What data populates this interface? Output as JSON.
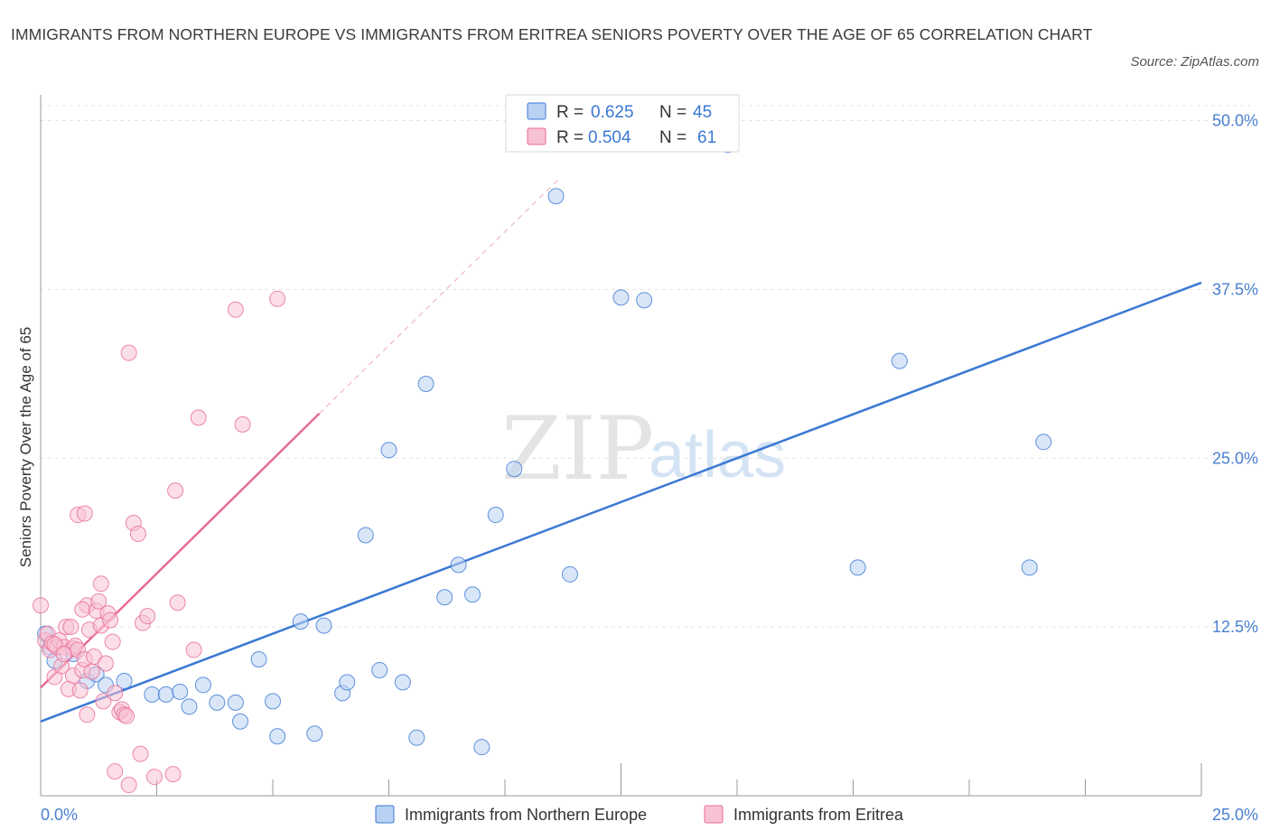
{
  "title": "IMMIGRANTS FROM NORTHERN EUROPE VS IMMIGRANTS FROM ERITREA SENIORS POVERTY OVER THE AGE OF 65 CORRELATION CHART",
  "source": "Source: ZipAtlas.com",
  "watermark": {
    "zip": "ZIP",
    "atlas": "atlas"
  },
  "colors": {
    "blue": "#3b78d4",
    "blue_fill": "#b9d2f3",
    "pink": "#e86b96",
    "pink_fill": "#f7c2d3",
    "axis_label": "#4a7fd0"
  },
  "legend": {
    "rows": [
      {
        "r_label": "R =",
        "r_value": "0.625",
        "n_label": "N =",
        "n_value": "45"
      },
      {
        "r_label": "R =",
        "r_value": "0.504",
        "n_label": "N =",
        "n_value": "61"
      }
    ]
  },
  "chart_data": {
    "type": "scatter",
    "title": "IMMIGRANTS FROM NORTHERN EUROPE VS IMMIGRANTS FROM ERITREA SENIORS POVERTY OVER THE AGE OF 65 CORRELATION CHART",
    "xlabel": "",
    "ylabel": "Seniors Poverty Over the Age of 65",
    "xlim": [
      0,
      25
    ],
    "ylim": [
      0,
      50
    ],
    "x_tick_labels": [
      "0.0%",
      "25.0%"
    ],
    "y_ticks": [
      12.5,
      25.0,
      37.5,
      50.0
    ],
    "y_tick_labels": [
      "12.5%",
      "25.0%",
      "37.5%",
      "50.0%"
    ],
    "grid": true,
    "legend_position": "bottom",
    "series": [
      {
        "name": "Immigrants from Northern Europe",
        "color": "#3b78d4",
        "points": [
          [
            0.2,
            11.0
          ],
          [
            0.3,
            10.0
          ],
          [
            0.7,
            10.5
          ],
          [
            1.0,
            8.5
          ],
          [
            1.2,
            9.0
          ],
          [
            1.4,
            8.2
          ],
          [
            1.8,
            8.5
          ],
          [
            2.4,
            7.5
          ],
          [
            2.7,
            7.5
          ],
          [
            3.0,
            7.7
          ],
          [
            3.2,
            6.6
          ],
          [
            3.5,
            8.2
          ],
          [
            3.8,
            6.9
          ],
          [
            4.2,
            6.9
          ],
          [
            4.3,
            5.5
          ],
          [
            4.7,
            10.1
          ],
          [
            5.0,
            7.0
          ],
          [
            5.1,
            4.4
          ],
          [
            5.6,
            12.9
          ],
          [
            5.9,
            4.6
          ],
          [
            6.1,
            12.6
          ],
          [
            6.5,
            7.6
          ],
          [
            6.6,
            8.4
          ],
          [
            7.0,
            19.3
          ],
          [
            7.3,
            9.3
          ],
          [
            7.5,
            25.6
          ],
          [
            7.8,
            8.4
          ],
          [
            8.1,
            4.3
          ],
          [
            8.3,
            30.5
          ],
          [
            8.7,
            14.7
          ],
          [
            9.0,
            17.1
          ],
          [
            9.3,
            14.9
          ],
          [
            9.5,
            3.6
          ],
          [
            9.8,
            20.8
          ],
          [
            10.2,
            24.2
          ],
          [
            11.4,
            16.4
          ],
          [
            11.1,
            44.4
          ],
          [
            12.5,
            36.9
          ],
          [
            13.0,
            36.7
          ],
          [
            14.8,
            48.2
          ],
          [
            17.6,
            16.9
          ],
          [
            18.5,
            32.2
          ],
          [
            21.3,
            16.9
          ],
          [
            21.6,
            26.2
          ],
          [
            0.1,
            12.0
          ]
        ],
        "trend": [
          [
            0,
            5.5
          ],
          [
            25,
            38.0
          ]
        ]
      },
      {
        "name": "Immigrants from Eritrea",
        "color": "#e86b96",
        "points": [
          [
            0.0,
            14.1
          ],
          [
            0.1,
            11.5
          ],
          [
            0.15,
            12.0
          ],
          [
            0.2,
            10.8
          ],
          [
            0.25,
            11.3
          ],
          [
            0.3,
            8.8
          ],
          [
            0.35,
            11.0
          ],
          [
            0.4,
            11.5
          ],
          [
            0.45,
            9.6
          ],
          [
            0.5,
            11.0
          ],
          [
            0.55,
            12.5
          ],
          [
            0.6,
            7.9
          ],
          [
            0.65,
            12.5
          ],
          [
            0.7,
            10.9
          ],
          [
            0.75,
            11.1
          ],
          [
            0.8,
            10.8
          ],
          [
            0.7,
            8.9
          ],
          [
            0.8,
            20.8
          ],
          [
            0.9,
            9.3
          ],
          [
            0.85,
            7.8
          ],
          [
            0.95,
            10.1
          ],
          [
            1.0,
            14.1
          ],
          [
            0.9,
            13.8
          ],
          [
            1.0,
            6.0
          ],
          [
            0.95,
            20.9
          ],
          [
            1.1,
            9.2
          ],
          [
            1.05,
            12.3
          ],
          [
            1.15,
            10.3
          ],
          [
            1.2,
            13.7
          ],
          [
            1.25,
            14.4
          ],
          [
            1.3,
            12.6
          ],
          [
            1.35,
            7.0
          ],
          [
            1.3,
            15.7
          ],
          [
            1.4,
            9.8
          ],
          [
            1.45,
            13.5
          ],
          [
            1.5,
            13.0
          ],
          [
            1.55,
            11.4
          ],
          [
            1.6,
            7.6
          ],
          [
            1.6,
            1.8
          ],
          [
            1.7,
            6.2
          ],
          [
            1.75,
            6.4
          ],
          [
            1.8,
            6.0
          ],
          [
            1.85,
            5.9
          ],
          [
            1.9,
            0.8
          ],
          [
            1.9,
            32.8
          ],
          [
            2.0,
            20.2
          ],
          [
            2.1,
            19.4
          ],
          [
            2.15,
            3.1
          ],
          [
            2.2,
            12.8
          ],
          [
            2.3,
            13.3
          ],
          [
            2.45,
            1.4
          ],
          [
            2.85,
            1.6
          ],
          [
            2.9,
            22.6
          ],
          [
            2.95,
            14.3
          ],
          [
            3.3,
            10.8
          ],
          [
            3.4,
            28.0
          ],
          [
            4.2,
            36.0
          ],
          [
            4.35,
            27.5
          ],
          [
            5.1,
            36.8
          ],
          [
            0.3,
            11.2
          ],
          [
            0.5,
            10.5
          ]
        ],
        "trend": [
          [
            0,
            8.0
          ],
          [
            6.0,
            28.3
          ]
        ],
        "trend_extension": [
          [
            6.0,
            28.3
          ],
          [
            11.2,
            45.8
          ]
        ]
      }
    ]
  },
  "bottom_legend": [
    {
      "label": "Immigrants from Northern Europe"
    },
    {
      "label": "Immigrants from Eritrea"
    }
  ]
}
